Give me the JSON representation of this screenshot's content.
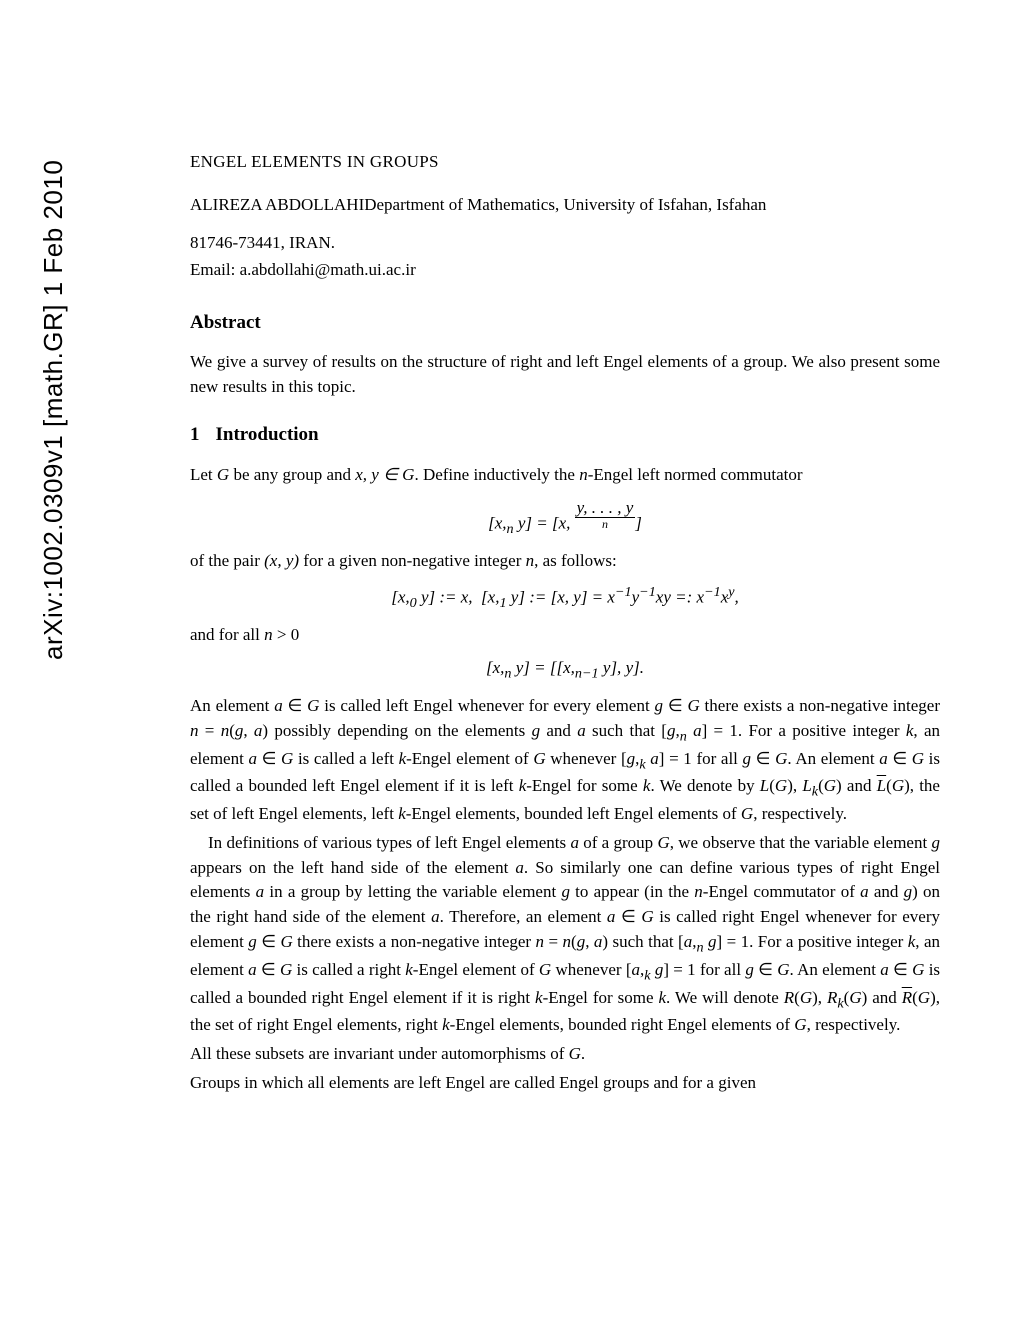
{
  "arxiv_stamp": "arXiv:1002.0309v1  [math.GR]  1 Feb 2010",
  "title": "ENGEL ELEMENTS IN GROUPS",
  "author": "ALIREZA ABDOLLAHI",
  "affiliation": "Department of Mathematics, University of Isfahan, Isfahan",
  "address": "81746-73441, IRAN.",
  "email_label": "Email: ",
  "email": "a.abdollahi@math.ui.ac.ir",
  "abstract_heading": "Abstract",
  "abstract_text": "We give a survey of results on the structure of right and left Engel elements of a group. We also present some new results in this topic.",
  "section1_number": "1",
  "section1_title": "Introduction",
  "intro_p1a": "Let ",
  "intro_p1b": " be any group and ",
  "intro_p1c": ". Define inductively the ",
  "intro_p1d": "-Engel left normed commutator",
  "eq1_left": "[x,",
  "eq1_sub": "n",
  "eq1_mid": " y] = [x, ",
  "eq1_under_top": "y, . . . , y",
  "eq1_under_label": "n",
  "eq1_right": "]",
  "intro_p2a": "of the pair ",
  "intro_p2b": " for a given non-negative integer ",
  "intro_p2c": ", as follows:",
  "eq2": "[x,₀ y] := x,  [x,₁ y] := [x, y] = x⁻¹y⁻¹xy =: x⁻¹xʸ,",
  "intro_p3": "and for all n > 0",
  "eq3": "[x,ₙ y] = [[x,ₙ₋₁ y], y].",
  "para_a": "An element a ∈ G is called left Engel whenever for every element g ∈ G there exists a non-negative integer n = n(g, a) possibly depending on the elements g and a such that [g,ₙ a] = 1. For a positive integer k, an element a ∈ G is called a left k-Engel element of G whenever [g,ₖ a] = 1 for all g ∈ G. An element a ∈ G is called a bounded left Engel element if it is left k-Engel for some k. We denote by L(G), Lₖ(G) and L̄(G), the set of left Engel elements, left k-Engel elements, bounded left Engel elements of G, respectively.",
  "para_b": "In definitions of various types of left Engel elements a of a group G, we observe that the variable element g appears on the left hand side of the element a. So similarly one can define various types of right Engel elements a in a group by letting the variable element g to appear (in the n-Engel commutator of a and g) on the right hand side of the element a. Therefore, an element a ∈ G is called right Engel whenever for every element g ∈ G there exists a non-negative integer n = n(g, a) such that [a,ₙ g] = 1. For a positive integer k, an element a ∈ G is called a right k-Engel element of G whenever [a,ₖ g] = 1 for all g ∈ G. An element a ∈ G is called a bounded right Engel element if it is right k-Engel for some k. We will denote R(G), Rₖ(G) and R̄(G), the set of right Engel elements, right k-Engel elements, bounded right Engel elements of G, respectively.",
  "para_c": "All these subsets are invariant under automorphisms of G.",
  "para_d": "Groups in which all elements are left Engel are called Engel groups and for a given",
  "vars": {
    "G": "G",
    "xy_in_G": "x, y ∈ G",
    "n": "n",
    "pair": "(x, y)"
  }
}
